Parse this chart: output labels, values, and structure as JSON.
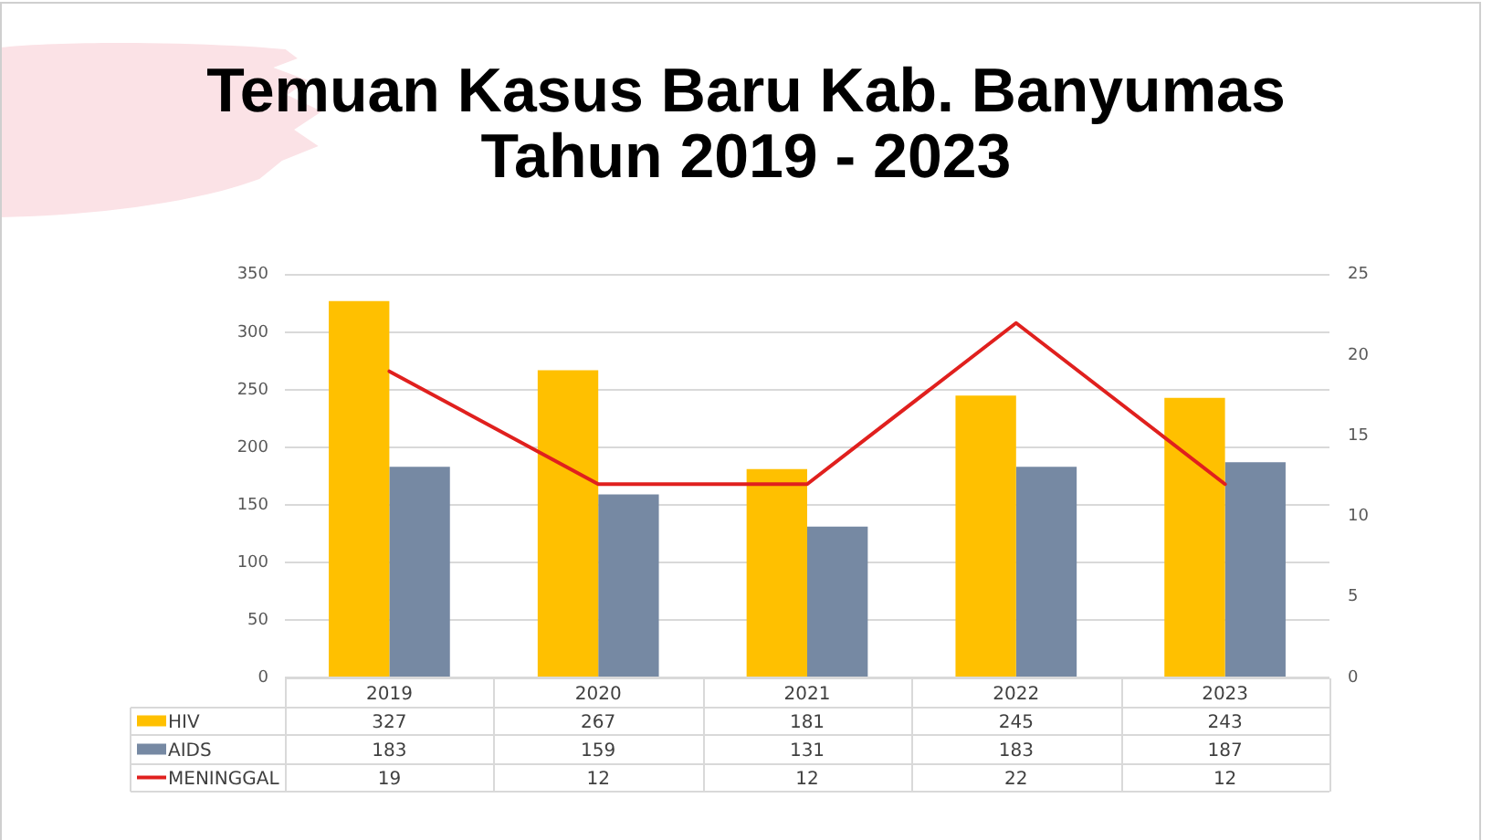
{
  "chart_data": {
    "type": "bar",
    "title": "Temuan Kasus Baru Kab. Banyumas Tahun 2019 - 2023",
    "categories": [
      "2019",
      "2020",
      "2021",
      "2022",
      "2023"
    ],
    "series": [
      {
        "name": "HIV",
        "color": "#ffc000",
        "values": [
          327,
          267,
          181,
          245,
          243
        ]
      },
      {
        "name": "AIDS",
        "color": "#7689a3",
        "values": [
          183,
          159,
          131,
          183,
          187
        ]
      },
      {
        "name": "MENINGGAL",
        "type": "line",
        "axis": "y2",
        "color": "#e0201e",
        "values": [
          19,
          12,
          12,
          22,
          12
        ]
      }
    ],
    "ylim": [
      0,
      350
    ],
    "yticks": [
      0,
      50,
      100,
      150,
      200,
      250,
      300,
      350
    ],
    "y2lim": [
      0,
      25
    ],
    "y2ticks": [
      0,
      5,
      10,
      15,
      20,
      25
    ],
    "grid": "y",
    "legend": "bottom",
    "data_labels": true
  }
}
